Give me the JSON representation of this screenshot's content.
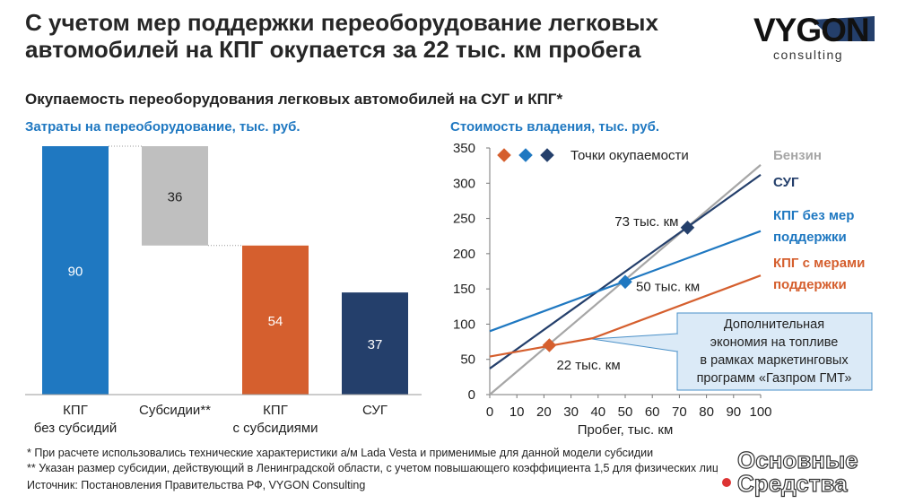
{
  "header": {
    "title": "С учетом мер поддержки переоборудование легковых\nавтомобилей на КПГ окупается за 22 тыс. км пробега",
    "logo": "VYGON",
    "logo_sub": "consulting",
    "subtitle": "Окупаемость переоборудования легковых автомобилей на СУГ и КПГ*"
  },
  "chart_data": [
    {
      "type": "waterfall",
      "title": "Затраты на переоборудование, тыс. руб.",
      "categories": [
        "КПГ\nбез субсидий",
        "Субсидии**",
        "КПГ\nс субсидиями",
        "СУГ"
      ],
      "values": [
        90,
        36,
        54,
        37
      ],
      "colors": [
        "#1f78c1",
        "#bfbfbf",
        "#d55f2e",
        "#243f6b"
      ]
    },
    {
      "type": "line",
      "title": "Стоимость владения, тыс. руб.",
      "xlabel": "Пробег, тыс. км",
      "xlim": [
        0,
        100
      ],
      "xticks": [
        0,
        10,
        20,
        30,
        40,
        50,
        60,
        70,
        80,
        90,
        100
      ],
      "ylim": [
        0,
        350
      ],
      "yticks": [
        0,
        50,
        100,
        150,
        200,
        250,
        300,
        350
      ],
      "series": [
        {
          "name": "Бензин",
          "color": "#a6a6a6",
          "x": [
            0,
            100
          ],
          "values": [
            0,
            326
          ]
        },
        {
          "name": "СУГ",
          "color": "#243f6b",
          "x": [
            0,
            100
          ],
          "values": [
            37,
            312
          ]
        },
        {
          "name": "КПГ без мер\nподдержки",
          "color": "#1f78c1",
          "x": [
            0,
            100
          ],
          "values": [
            90,
            232
          ]
        },
        {
          "name": "КПГ с мерами\nподдержки",
          "color": "#d55f2e",
          "x": [
            0,
            38,
            100
          ],
          "values": [
            54,
            80,
            169
          ]
        }
      ],
      "points_legend": "Точки окупаемости",
      "points": [
        {
          "x": 22,
          "y": 70,
          "label": "22 тыс. км",
          "color": "#d55f2e"
        },
        {
          "x": 50,
          "y": 160,
          "label": "50 тыс. км",
          "color": "#1f78c1"
        },
        {
          "x": 73,
          "y": 237,
          "label": "73 тыс. км",
          "color": "#243f6b"
        }
      ],
      "callout": "Дополнительная\nэкономия на топливе\nв рамках маркетинговых\nпрограмм «Газпром ГМТ»"
    }
  ],
  "footnotes": [
    "* При расчете использовались технические характеристики а/м Lada Vesta и применимые для данной модели субсидии",
    "** Указан размер субсидии, действующий в Ленинградской области, с учетом повышающего коэффициента 1,5 для физических лиц"
  ],
  "source": "Источник: Постановления Правительства РФ, VYGON Consulting",
  "watermark": "Основные\nСредства"
}
